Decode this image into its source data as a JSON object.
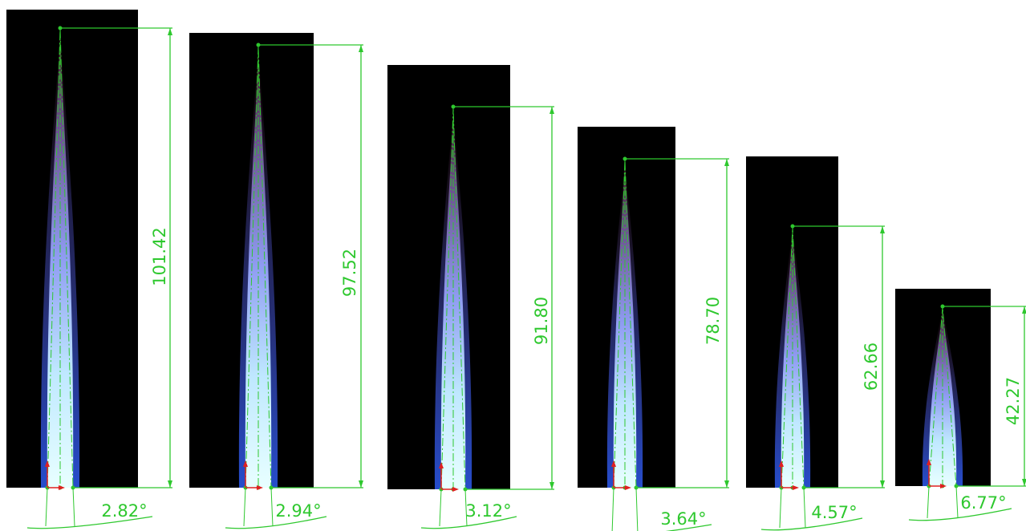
{
  "panels": [
    {
      "height": "101.42",
      "angle": "2.82°"
    },
    {
      "height": "97.52",
      "angle": "2.94°"
    },
    {
      "height": "91.80",
      "angle": "3.12°"
    },
    {
      "height": "78.70",
      "angle": "3.64°"
    },
    {
      "height": "62.66",
      "angle": "4.57°"
    },
    {
      "height": "42.27",
      "angle": "6.77°"
    }
  ]
}
